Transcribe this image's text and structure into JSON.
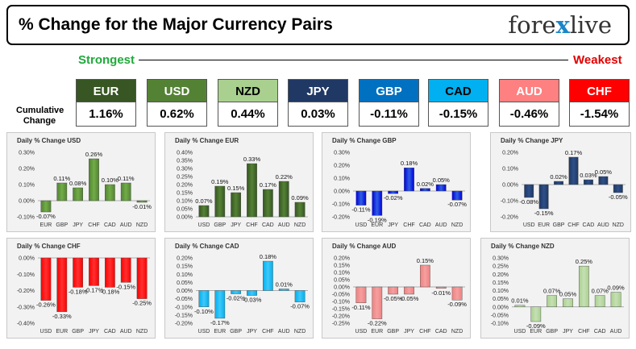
{
  "header": {
    "title": "% Change for the Major Currency Pairs",
    "brand_left": "fore",
    "brand_x": "x",
    "brand_right": "live"
  },
  "ranking": {
    "strongest_label": "Strongest",
    "weakest_label": "Weakest",
    "cumulative_label": "Cumulative Change",
    "currencies": [
      {
        "code": "EUR",
        "change": "1.16%",
        "color": "#375623",
        "text_color": "#ffffff"
      },
      {
        "code": "USD",
        "change": "0.62%",
        "color": "#548235",
        "text_color": "#ffffff"
      },
      {
        "code": "NZD",
        "change": "0.44%",
        "color": "#a9d08e",
        "text_color": "#000000"
      },
      {
        "code": "JPY",
        "change": "0.03%",
        "color": "#1f3864",
        "text_color": "#ffffff"
      },
      {
        "code": "GBP",
        "change": "-0.11%",
        "color": "#0070c0",
        "text_color": "#ffffff"
      },
      {
        "code": "CAD",
        "change": "-0.15%",
        "color": "#00b0f0",
        "text_color": "#000000"
      },
      {
        "code": "AUD",
        "change": "-0.46%",
        "color": "#ff8080",
        "text_color": "#ffffff"
      },
      {
        "code": "CHF",
        "change": "-1.54%",
        "color": "#ff0000",
        "text_color": "#ffffff"
      }
    ]
  },
  "chart_data": [
    {
      "type": "bar",
      "title": "Daily % Change USD",
      "color": "#548235",
      "highlight": "#70ad47",
      "categories": [
        "EUR",
        "GBP",
        "JPY",
        "CHF",
        "CAD",
        "AUD",
        "NZD"
      ],
      "values": [
        -0.07,
        0.11,
        0.08,
        0.26,
        0.1,
        0.11,
        -0.01
      ],
      "labels": [
        "-0.07%",
        "0.11%",
        "0.08%",
        "0.26%",
        "0.10%",
        "0.11%",
        "-0.01%"
      ],
      "ylim": [
        -0.1,
        0.3
      ],
      "ticks": [
        -0.1,
        0.0,
        0.1,
        0.2,
        0.3
      ],
      "tick_labels": [
        "-0.10%",
        "0.00%",
        "0.10%",
        "0.20%",
        "0.30%"
      ],
      "grid": false
    },
    {
      "type": "bar",
      "title": "Daily % Change EUR",
      "color": "#375623",
      "highlight": "#548235",
      "categories": [
        "USD",
        "GBP",
        "JPY",
        "CHF",
        "CAD",
        "AUD",
        "NZD"
      ],
      "values": [
        0.07,
        0.19,
        0.15,
        0.33,
        0.17,
        0.22,
        0.09
      ],
      "labels": [
        "0.07%",
        "0.19%",
        "0.15%",
        "0.33%",
        "0.17%",
        "0.22%",
        "0.09%"
      ],
      "ylim": [
        0.0,
        0.4
      ],
      "ticks": [
        0.0,
        0.05,
        0.1,
        0.15,
        0.2,
        0.25,
        0.3,
        0.35,
        0.4
      ],
      "tick_labels": [
        "0.00%",
        "0.05%",
        "0.10%",
        "0.15%",
        "0.20%",
        "0.25%",
        "0.30%",
        "0.35%",
        "0.40%"
      ],
      "grid": false
    },
    {
      "type": "bar",
      "title": "Daily % Change GBP",
      "color": "#0000e0",
      "highlight": "#2f5fe0",
      "categories": [
        "USD",
        "EUR",
        "JPY",
        "CHF",
        "CAD",
        "AUD",
        "NZD"
      ],
      "values": [
        -0.11,
        -0.19,
        -0.02,
        0.18,
        0.02,
        0.05,
        -0.07
      ],
      "labels": [
        "-0.11%",
        "-0.19%",
        "-0.02%",
        "0.18%",
        "0.02%",
        "0.05%",
        "-0.07%"
      ],
      "ylim": [
        -0.2,
        0.3
      ],
      "ticks": [
        -0.2,
        -0.1,
        0.0,
        0.1,
        0.2,
        0.3
      ],
      "tick_labels": [
        "-0.20%",
        "-0.10%",
        "0.00%",
        "0.10%",
        "0.20%",
        "0.30%"
      ],
      "grid": false
    },
    {
      "type": "bar",
      "title": "Daily % Change JPY",
      "color": "#1f3864",
      "highlight": "#2e4f8a",
      "categories": [
        "USD",
        "EUR",
        "GBP",
        "CHF",
        "CAD",
        "AUD",
        "NZD"
      ],
      "values": [
        -0.08,
        -0.15,
        0.02,
        0.17,
        0.03,
        0.05,
        -0.05
      ],
      "labels": [
        "-0.08%",
        "-0.15%",
        "0.02%",
        "0.17%",
        "0.03%",
        "0.05%",
        "-0.05%"
      ],
      "ylim": [
        -0.2,
        0.2
      ],
      "ticks": [
        -0.2,
        -0.1,
        0.0,
        0.1,
        0.2
      ],
      "tick_labels": [
        "-0.20%",
        "-0.10%",
        "0.00%",
        "0.10%",
        "0.20%"
      ],
      "grid": false
    },
    {
      "type": "bar",
      "title": "Daily % Change CHF",
      "color": "#ff0000",
      "highlight": "#ff3030",
      "categories": [
        "USD",
        "EUR",
        "GBP",
        "JPY",
        "CAD",
        "AUD",
        "NZD"
      ],
      "values": [
        -0.26,
        -0.33,
        -0.18,
        -0.17,
        -0.18,
        -0.15,
        -0.25
      ],
      "labels": [
        "-0.26%",
        "-0.33%",
        "-0.18%",
        "-0.17%",
        "-0.18%",
        "-0.15%",
        "-0.25%"
      ],
      "ylim": [
        -0.4,
        0.0
      ],
      "ticks": [
        -0.4,
        -0.3,
        -0.2,
        -0.1,
        0.0
      ],
      "tick_labels": [
        "-0.40%",
        "-0.30%",
        "-0.20%",
        "-0.10%",
        "0.00%"
      ],
      "grid": false
    },
    {
      "type": "bar",
      "title": "Daily % Change CAD",
      "color": "#00b0f0",
      "highlight": "#40c8f8",
      "categories": [
        "USD",
        "EUR",
        "GBP",
        "JPY",
        "CHF",
        "AUD",
        "NZD"
      ],
      "values": [
        -0.1,
        -0.17,
        -0.02,
        -0.03,
        0.18,
        0.01,
        -0.07
      ],
      "labels": [
        "-0.10%",
        "-0.17%",
        "-0.02%",
        "-0.03%",
        "0.18%",
        "0.01%",
        "-0.07%"
      ],
      "ylim": [
        -0.2,
        0.2
      ],
      "ticks": [
        -0.2,
        -0.15,
        -0.1,
        -0.05,
        0.0,
        0.05,
        0.1,
        0.15,
        0.2
      ],
      "tick_labels": [
        "-0.20%",
        "-0.15%",
        "-0.10%",
        "-0.05%",
        "0.00%",
        "0.05%",
        "0.10%",
        "0.15%",
        "0.20%"
      ],
      "grid": false
    },
    {
      "type": "bar",
      "title": "Daily % Change AUD",
      "color": "#f08080",
      "highlight": "#f4a0a0",
      "categories": [
        "USD",
        "EUR",
        "GBP",
        "JPY",
        "CHF",
        "CAD",
        "NZD"
      ],
      "values": [
        -0.11,
        -0.22,
        -0.05,
        -0.05,
        0.15,
        -0.01,
        -0.09
      ],
      "labels": [
        "-0.11%",
        "-0.22%",
        "-0.05%",
        "-0.05%",
        "0.15%",
        "-0.01%",
        "-0.09%"
      ],
      "ylim": [
        -0.25,
        0.2
      ],
      "ticks": [
        -0.25,
        -0.2,
        -0.15,
        -0.1,
        -0.05,
        0.0,
        0.05,
        0.1,
        0.15,
        0.2
      ],
      "tick_labels": [
        "-0.25%",
        "-0.20%",
        "-0.15%",
        "-0.10%",
        "-0.05%",
        "0.00%",
        "0.05%",
        "0.10%",
        "0.15%",
        "0.20%"
      ],
      "grid": false
    },
    {
      "type": "bar",
      "title": "Daily % Change NZD",
      "color": "#a9d08e",
      "highlight": "#c5e0b4",
      "categories": [
        "USD",
        "EUR",
        "GBP",
        "JPY",
        "CHF",
        "CAD",
        "AUD"
      ],
      "values": [
        0.01,
        -0.09,
        0.07,
        0.05,
        0.25,
        0.07,
        0.09
      ],
      "labels": [
        "0.01%",
        "-0.09%",
        "0.07%",
        "0.05%",
        "0.25%",
        "0.07%",
        "0.09%"
      ],
      "ylim": [
        -0.1,
        0.3
      ],
      "ticks": [
        -0.1,
        -0.05,
        0.0,
        0.05,
        0.1,
        0.15,
        0.2,
        0.25,
        0.3
      ],
      "tick_labels": [
        "-0.10%",
        "-0.05%",
        "0.00%",
        "0.05%",
        "0.10%",
        "0.15%",
        "0.20%",
        "0.25%",
        "0.30%"
      ],
      "grid": false
    }
  ]
}
